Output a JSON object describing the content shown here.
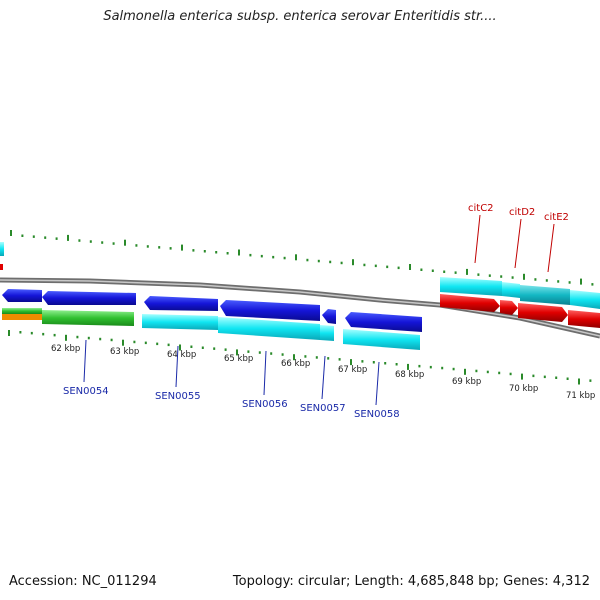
{
  "title": "Salmonella enterica subsp. enterica serovar Enteritidis str....",
  "footer": {
    "accession": "Accession: NC_011294",
    "summary": "Topology: circular; Length: 4,685,848 bp; Genes: 4,312"
  },
  "ruler_labels": [
    "62 kbp",
    "63 kbp",
    "64 kbp",
    "65 kbp",
    "66 kbp",
    "67 kbp",
    "68 kbp",
    "69 kbp",
    "70 kbp",
    "71 kbp"
  ],
  "genes_blue": [
    "SEN0054",
    "SEN0055",
    "SEN0056",
    "SEN0057",
    "SEN0058"
  ],
  "genes_red": [
    "citC2",
    "citD2",
    "citE2"
  ],
  "colors": {
    "forward_cds": "#1010d8",
    "forward_cds_light": "#00e8f0",
    "reverse_cds": "#e00000",
    "green_track": "#30c030",
    "orange_track": "#f08c00",
    "teal_track": "#10b8c0",
    "tick_green": "#2a8a2a",
    "backbone": "#777777"
  }
}
